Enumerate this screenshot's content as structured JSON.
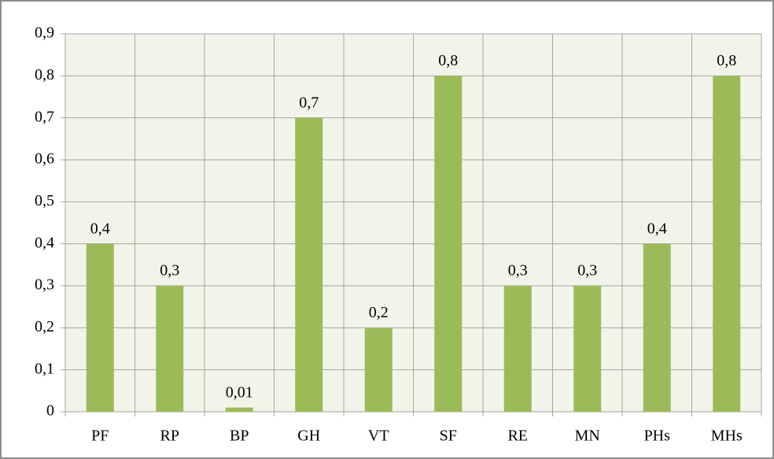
{
  "chart_data": {
    "type": "bar",
    "categories": [
      "PF",
      "RP",
      "BP",
      "GH",
      "VT",
      "SF",
      "RE",
      "MN",
      "PHs",
      "MHs"
    ],
    "values": [
      0.4,
      0.3,
      0.01,
      0.7,
      0.2,
      0.8,
      0.3,
      0.3,
      0.4,
      0.8
    ],
    "value_labels": [
      "0,4",
      "0,3",
      "0,01",
      "0,7",
      "0,2",
      "0,8",
      "0,3",
      "0,3",
      "0,4",
      "0,8"
    ],
    "color": "#9bbb59",
    "ylim": [
      0,
      0.9
    ],
    "yticks": [
      0,
      {
        "value": 0.1,
        "label": "0,1"
      },
      {
        "value": 0.2,
        "label": "0,2"
      },
      {
        "value": 0.3,
        "label": "0,3"
      },
      {
        "value": 0.4,
        "label": "0,4"
      },
      {
        "value": 0.5,
        "label": "0,5"
      },
      {
        "value": 0.6,
        "label": "0,6"
      },
      {
        "value": 0.7,
        "label": "0,7"
      },
      {
        "value": 0.8,
        "label": "0,8"
      },
      {
        "value": 0.9,
        "label": "0,9"
      }
    ],
    "grid": true
  }
}
